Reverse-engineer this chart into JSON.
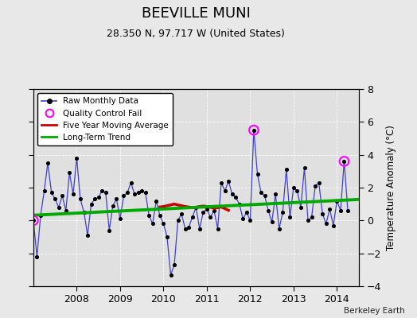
{
  "title": "BEEVILLE MUNI",
  "subtitle": "28.350 N, 97.717 W (United States)",
  "ylabel": "Temperature Anomaly (°C)",
  "credit": "Berkeley Earth",
  "ylim": [
    -4,
    8
  ],
  "xlim": [
    2007.0,
    2014.5
  ],
  "yticks": [
    -4,
    -2,
    0,
    2,
    4,
    6,
    8
  ],
  "xticks": [
    2008,
    2009,
    2010,
    2011,
    2012,
    2013,
    2014
  ],
  "background_color": "#e8e8e8",
  "plot_bg_color": "#e0e0e0",
  "raw_data": {
    "x": [
      2007.0,
      2007.083,
      2007.167,
      2007.25,
      2007.333,
      2007.417,
      2007.5,
      2007.583,
      2007.667,
      2007.75,
      2007.833,
      2007.917,
      2008.0,
      2008.083,
      2008.167,
      2008.25,
      2008.333,
      2008.417,
      2008.5,
      2008.583,
      2008.667,
      2008.75,
      2008.833,
      2008.917,
      2009.0,
      2009.083,
      2009.167,
      2009.25,
      2009.333,
      2009.417,
      2009.5,
      2009.583,
      2009.667,
      2009.75,
      2009.833,
      2009.917,
      2010.0,
      2010.083,
      2010.167,
      2010.25,
      2010.333,
      2010.417,
      2010.5,
      2010.583,
      2010.667,
      2010.75,
      2010.833,
      2010.917,
      2011.0,
      2011.083,
      2011.167,
      2011.25,
      2011.333,
      2011.417,
      2011.5,
      2011.583,
      2011.667,
      2011.75,
      2011.833,
      2011.917,
      2012.0,
      2012.083,
      2012.167,
      2012.25,
      2012.333,
      2012.417,
      2012.5,
      2012.583,
      2012.667,
      2012.75,
      2012.833,
      2012.917,
      2013.0,
      2013.083,
      2013.167,
      2013.25,
      2013.333,
      2013.417,
      2013.5,
      2013.583,
      2013.667,
      2013.75,
      2013.833,
      2013.917,
      2014.0,
      2014.083,
      2014.167,
      2014.25
    ],
    "y": [
      0.0,
      -2.2,
      0.3,
      1.8,
      3.5,
      1.7,
      1.3,
      0.8,
      1.5,
      0.6,
      2.9,
      1.6,
      3.8,
      1.3,
      0.5,
      -0.9,
      1.0,
      1.3,
      1.4,
      1.8,
      1.7,
      -0.6,
      0.9,
      1.3,
      0.1,
      1.5,
      1.7,
      2.3,
      1.6,
      1.7,
      1.8,
      1.7,
      0.3,
      -0.2,
      1.2,
      0.3,
      -0.2,
      -1.0,
      -3.3,
      -2.7,
      0.0,
      0.4,
      -0.5,
      -0.4,
      0.2,
      0.8,
      -0.5,
      0.5,
      0.7,
      0.2,
      0.6,
      -0.5,
      2.3,
      1.8,
      2.4,
      1.6,
      1.4,
      1.0,
      0.1,
      0.5,
      0.0,
      5.5,
      2.8,
      1.7,
      1.5,
      0.6,
      -0.1,
      1.6,
      -0.5,
      0.5,
      3.1,
      0.2,
      2.0,
      1.8,
      0.8,
      3.2,
      0.0,
      0.2,
      2.1,
      2.3,
      0.4,
      -0.2,
      0.7,
      -0.3,
      1.2,
      0.6,
      3.6,
      0.6
    ]
  },
  "qc_fail_points": {
    "x": [
      2007.0,
      2012.083,
      2014.167
    ],
    "y": [
      0.0,
      5.5,
      3.6
    ]
  },
  "moving_avg": {
    "x": [
      2009.917,
      2010.0,
      2010.083,
      2010.167,
      2010.25,
      2010.333,
      2010.417,
      2010.5,
      2010.583,
      2010.667,
      2010.75,
      2010.833,
      2010.917,
      2011.0,
      2011.083,
      2011.167,
      2011.25,
      2011.333,
      2011.417,
      2011.5
    ],
    "y": [
      0.82,
      0.85,
      0.9,
      0.95,
      1.0,
      0.95,
      0.9,
      0.85,
      0.82,
      0.78,
      0.8,
      0.85,
      0.88,
      0.85,
      0.8,
      0.75,
      0.78,
      0.82,
      0.72,
      0.62
    ]
  },
  "trend": {
    "x": [
      2007.0,
      2014.5
    ],
    "y": [
      0.32,
      1.28
    ]
  },
  "colors": {
    "raw_line": "#4040cc",
    "raw_dot": "#000000",
    "qc_fail": "#ff00ff",
    "moving_avg": "#cc0000",
    "trend": "#00aa00"
  }
}
